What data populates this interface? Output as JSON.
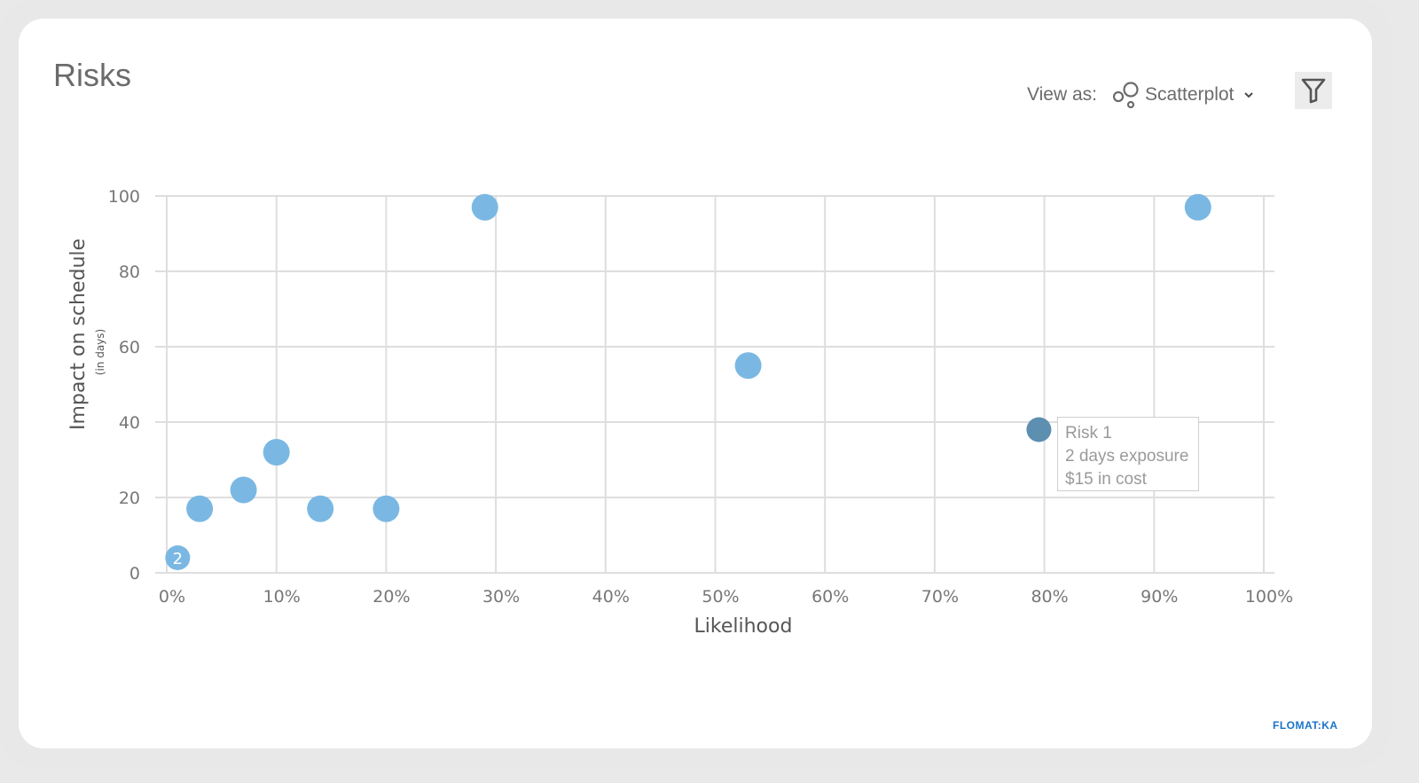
{
  "page": {
    "title": "Risks"
  },
  "view_as": {
    "label": "View as:",
    "selected": "Scatterplot",
    "icon": "scatter-icon"
  },
  "filter": {
    "icon": "filter-icon"
  },
  "brand": "FLOMAT:KA",
  "tooltip": {
    "line1": "Risk 1",
    "line2": "2 days exposure",
    "line3": "$15 in cost"
  },
  "colors": {
    "point": "#7ab8e3",
    "point_selected": "#5d8fb1",
    "grid": "#dedede",
    "text": "#6b6b6b"
  },
  "chart_data": {
    "type": "scatter",
    "xlabel": "Likelihood",
    "ylabel": "Impact on schedule",
    "ylabel_sub": "(in days)",
    "xlim": [
      0,
      100
    ],
    "ylim": [
      0,
      100
    ],
    "x_ticks": [
      0,
      10,
      20,
      30,
      40,
      50,
      60,
      70,
      80,
      90,
      100
    ],
    "x_tick_labels": [
      "0%",
      "10%",
      "20%",
      "30%",
      "40%",
      "50%",
      "60%",
      "70%",
      "80%",
      "90%",
      "100%"
    ],
    "y_ticks": [
      0,
      20,
      40,
      60,
      80,
      100
    ],
    "y_tick_labels": [
      "0",
      "20",
      "40",
      "60",
      "80",
      "100"
    ],
    "grid": true,
    "points": [
      {
        "x": 1,
        "y": 4,
        "label": "2"
      },
      {
        "x": 3,
        "y": 17
      },
      {
        "x": 7,
        "y": 22
      },
      {
        "x": 10,
        "y": 32
      },
      {
        "x": 14,
        "y": 17
      },
      {
        "x": 20,
        "y": 17
      },
      {
        "x": 29,
        "y": 97
      },
      {
        "x": 53,
        "y": 55
      },
      {
        "x": 79.5,
        "y": 38,
        "selected": true
      },
      {
        "x": 94,
        "y": 97
      }
    ]
  }
}
